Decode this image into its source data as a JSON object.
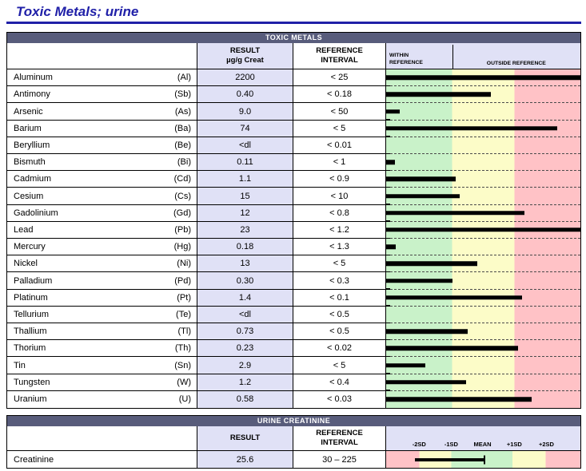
{
  "page": {
    "title": "Toxic Metals; urine"
  },
  "colors": {
    "title_blue": "#2020a8",
    "section_bar": "#585c7b",
    "lavender": "#e0e1f6",
    "within_zone_green": "#c9f2c9",
    "borderline_zone_yellow": "#fcfcc8",
    "outside_zone_pink": "#ffc2c6",
    "bar_black": "#000000"
  },
  "metals_table": {
    "section_title": "TOXIC METALS",
    "columns": {
      "result_line1": "RESULT",
      "result_line2": "µg/g Creat",
      "reference_line1": "REFERENCE",
      "reference_line2": "INTERVAL",
      "within_label": "WITHIN REFERENCE",
      "outside_label": "OUTSIDE REFERENCE"
    },
    "chart_zone_boundaries_pct": [
      34,
      66
    ],
    "rows": [
      {
        "name": "Aluminum",
        "symbol": "(Al)",
        "result": "2200",
        "reference": "< 25",
        "bar_pct": 100
      },
      {
        "name": "Antimony",
        "symbol": "(Sb)",
        "result": "0.40",
        "reference": "< 0.18",
        "bar_pct": 54
      },
      {
        "name": "Arsenic",
        "symbol": "(As)",
        "result": "9.0",
        "reference": "< 50",
        "bar_pct": 7
      },
      {
        "name": "Barium",
        "symbol": "(Ba)",
        "result": "74",
        "reference": "< 5",
        "bar_pct": 88
      },
      {
        "name": "Beryllium",
        "symbol": "(Be)",
        "result": "<dl",
        "reference": "< 0.01",
        "bar_pct": 0
      },
      {
        "name": "Bismuth",
        "symbol": "(Bi)",
        "result": "0.11",
        "reference": "< 1",
        "bar_pct": 4.5
      },
      {
        "name": "Cadmium",
        "symbol": "(Cd)",
        "result": "1.1",
        "reference": "< 0.9",
        "bar_pct": 36
      },
      {
        "name": "Cesium",
        "symbol": "(Cs)",
        "result": "15",
        "reference": "< 10",
        "bar_pct": 38
      },
      {
        "name": "Gadolinium",
        "symbol": "(Gd)",
        "result": "12",
        "reference": "< 0.8",
        "bar_pct": 71
      },
      {
        "name": "Lead",
        "symbol": "(Pb)",
        "result": "23",
        "reference": "< 1.2",
        "bar_pct": 100
      },
      {
        "name": "Mercury",
        "symbol": "(Hg)",
        "result": "0.18",
        "reference": "< 1.3",
        "bar_pct": 5
      },
      {
        "name": "Nickel",
        "symbol": "(Ni)",
        "result": "13",
        "reference": "< 5",
        "bar_pct": 47
      },
      {
        "name": "Palladium",
        "symbol": "(Pd)",
        "result": "0.30",
        "reference": "< 0.3",
        "bar_pct": 34
      },
      {
        "name": "Platinum",
        "symbol": "(Pt)",
        "result": "1.4",
        "reference": "< 0.1",
        "bar_pct": 70
      },
      {
        "name": "Tellurium",
        "symbol": "(Te)",
        "result": "<dl",
        "reference": "< 0.5",
        "bar_pct": 0
      },
      {
        "name": "Thallium",
        "symbol": "(Tl)",
        "result": "0.73",
        "reference": "< 0.5",
        "bar_pct": 42
      },
      {
        "name": "Thorium",
        "symbol": "(Th)",
        "result": "0.23",
        "reference": "< 0.02",
        "bar_pct": 68
      },
      {
        "name": "Tin",
        "symbol": "(Sn)",
        "result": "2.9",
        "reference": "< 5",
        "bar_pct": 20
      },
      {
        "name": "Tungsten",
        "symbol": "(W)",
        "result": "1.2",
        "reference": "< 0.4",
        "bar_pct": 41
      },
      {
        "name": "Uranium",
        "symbol": "(U)",
        "result": "0.58",
        "reference": "< 0.03",
        "bar_pct": 75
      }
    ]
  },
  "creatinine_table": {
    "section_title": "URINE CREATININE",
    "columns": {
      "result_line1": "RESULT",
      "reference_line1": "REFERENCE",
      "reference_line2": "INTERVAL"
    },
    "sd_labels": [
      "-2SD",
      "-1SD",
      "MEAN",
      "+1SD",
      "+2SD"
    ],
    "sd_positions_pct": [
      17,
      33.5,
      49.6,
      66,
      82.5
    ],
    "chart_zone_boundaries_pct": [
      17,
      33.5,
      65,
      82
    ],
    "row": {
      "name": "Creatinine",
      "result": "25.6",
      "reference": "30 – 225",
      "bar_start_pct": 15,
      "bar_end_pct": 50.5
    }
  }
}
